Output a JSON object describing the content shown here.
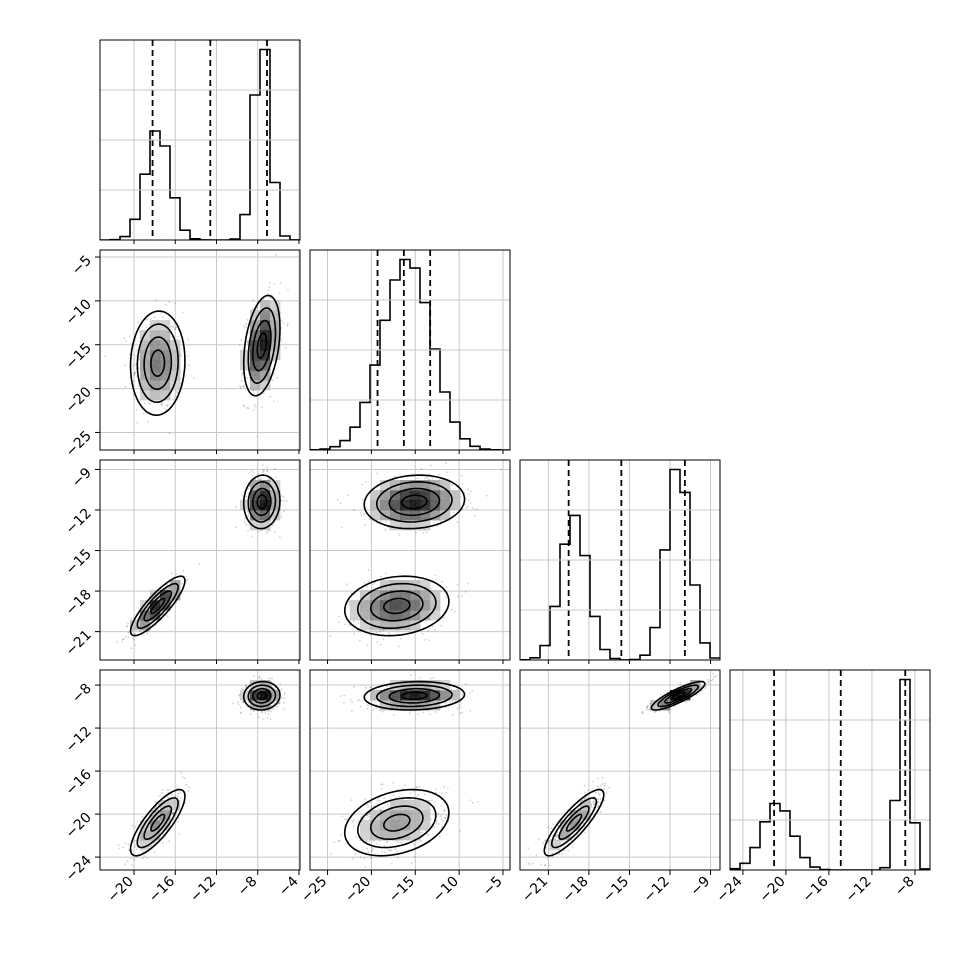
{
  "figure": {
    "type": "corner-plot"
  },
  "chart_data": {
    "type": "corner",
    "n_params": 4,
    "ranges": [
      [
        -23.3,
        -3.9
      ],
      [
        -27.0,
        -4.2
      ],
      [
        -23.1,
        -8.3
      ],
      [
        -25.2,
        -6.6
      ]
    ],
    "ticks": [
      {
        "values": [
          -20,
          -16,
          -12,
          -8,
          -4
        ],
        "labels": [
          "−20",
          "−16",
          "−12",
          "−8",
          "−4"
        ]
      },
      {
        "values": [
          -25,
          -20,
          -15,
          -10,
          -5
        ],
        "labels": [
          "−25",
          "−20",
          "−15",
          "−10",
          "−5"
        ]
      },
      {
        "values": [
          -21,
          -18,
          -15,
          -12,
          -9
        ],
        "labels": [
          "−21",
          "−18",
          "−15",
          "−12",
          "−9"
        ]
      },
      {
        "values": [
          -24,
          -20,
          -16,
          -12,
          -8
        ],
        "labels": [
          "−24",
          "−20",
          "−16",
          "−12",
          "−8"
        ]
      }
    ],
    "quantiles": [
      [
        -18.2,
        -12.6,
        -7.1
      ],
      [
        -19.3,
        -16.3,
        -13.3
      ],
      [
        -19.5,
        -15.6,
        -10.9
      ],
      [
        -21.1,
        -14.9,
        -8.9
      ]
    ],
    "modes": [
      {
        "weight": 0.45,
        "mean": [
          -17.7,
          -17.1,
          -19.1,
          -20.8
        ],
        "sd": [
          1.2,
          2.7,
          1.0,
          1.4
        ]
      },
      {
        "weight": 0.55,
        "mean": [
          -7.6,
          -15.1,
          -11.4,
          -9.0
        ],
        "sd": [
          0.8,
          2.6,
          0.9,
          0.6
        ]
      }
    ],
    "correlations": [
      {
        "pair": [
          0,
          1
        ],
        "modes": [
          0.05,
          0.35
        ]
      },
      {
        "pair": [
          0,
          2
        ],
        "modes": [
          0.85,
          0.05
        ]
      },
      {
        "pair": [
          0,
          3
        ],
        "modes": [
          0.8,
          0.05
        ]
      },
      {
        "pair": [
          1,
          2
        ],
        "modes": [
          0.15,
          0.1
        ]
      },
      {
        "pair": [
          1,
          3
        ],
        "modes": [
          0.3,
          0.1
        ]
      },
      {
        "pair": [
          2,
          3
        ],
        "modes": [
          0.85,
          0.85
        ]
      }
    ],
    "histogram_bins": 20,
    "density_grid": 20,
    "contour_levels_sigma": [
      0.5,
      1.0,
      1.5,
      2.0
    ],
    "scatter_points": 900,
    "grid": true
  }
}
